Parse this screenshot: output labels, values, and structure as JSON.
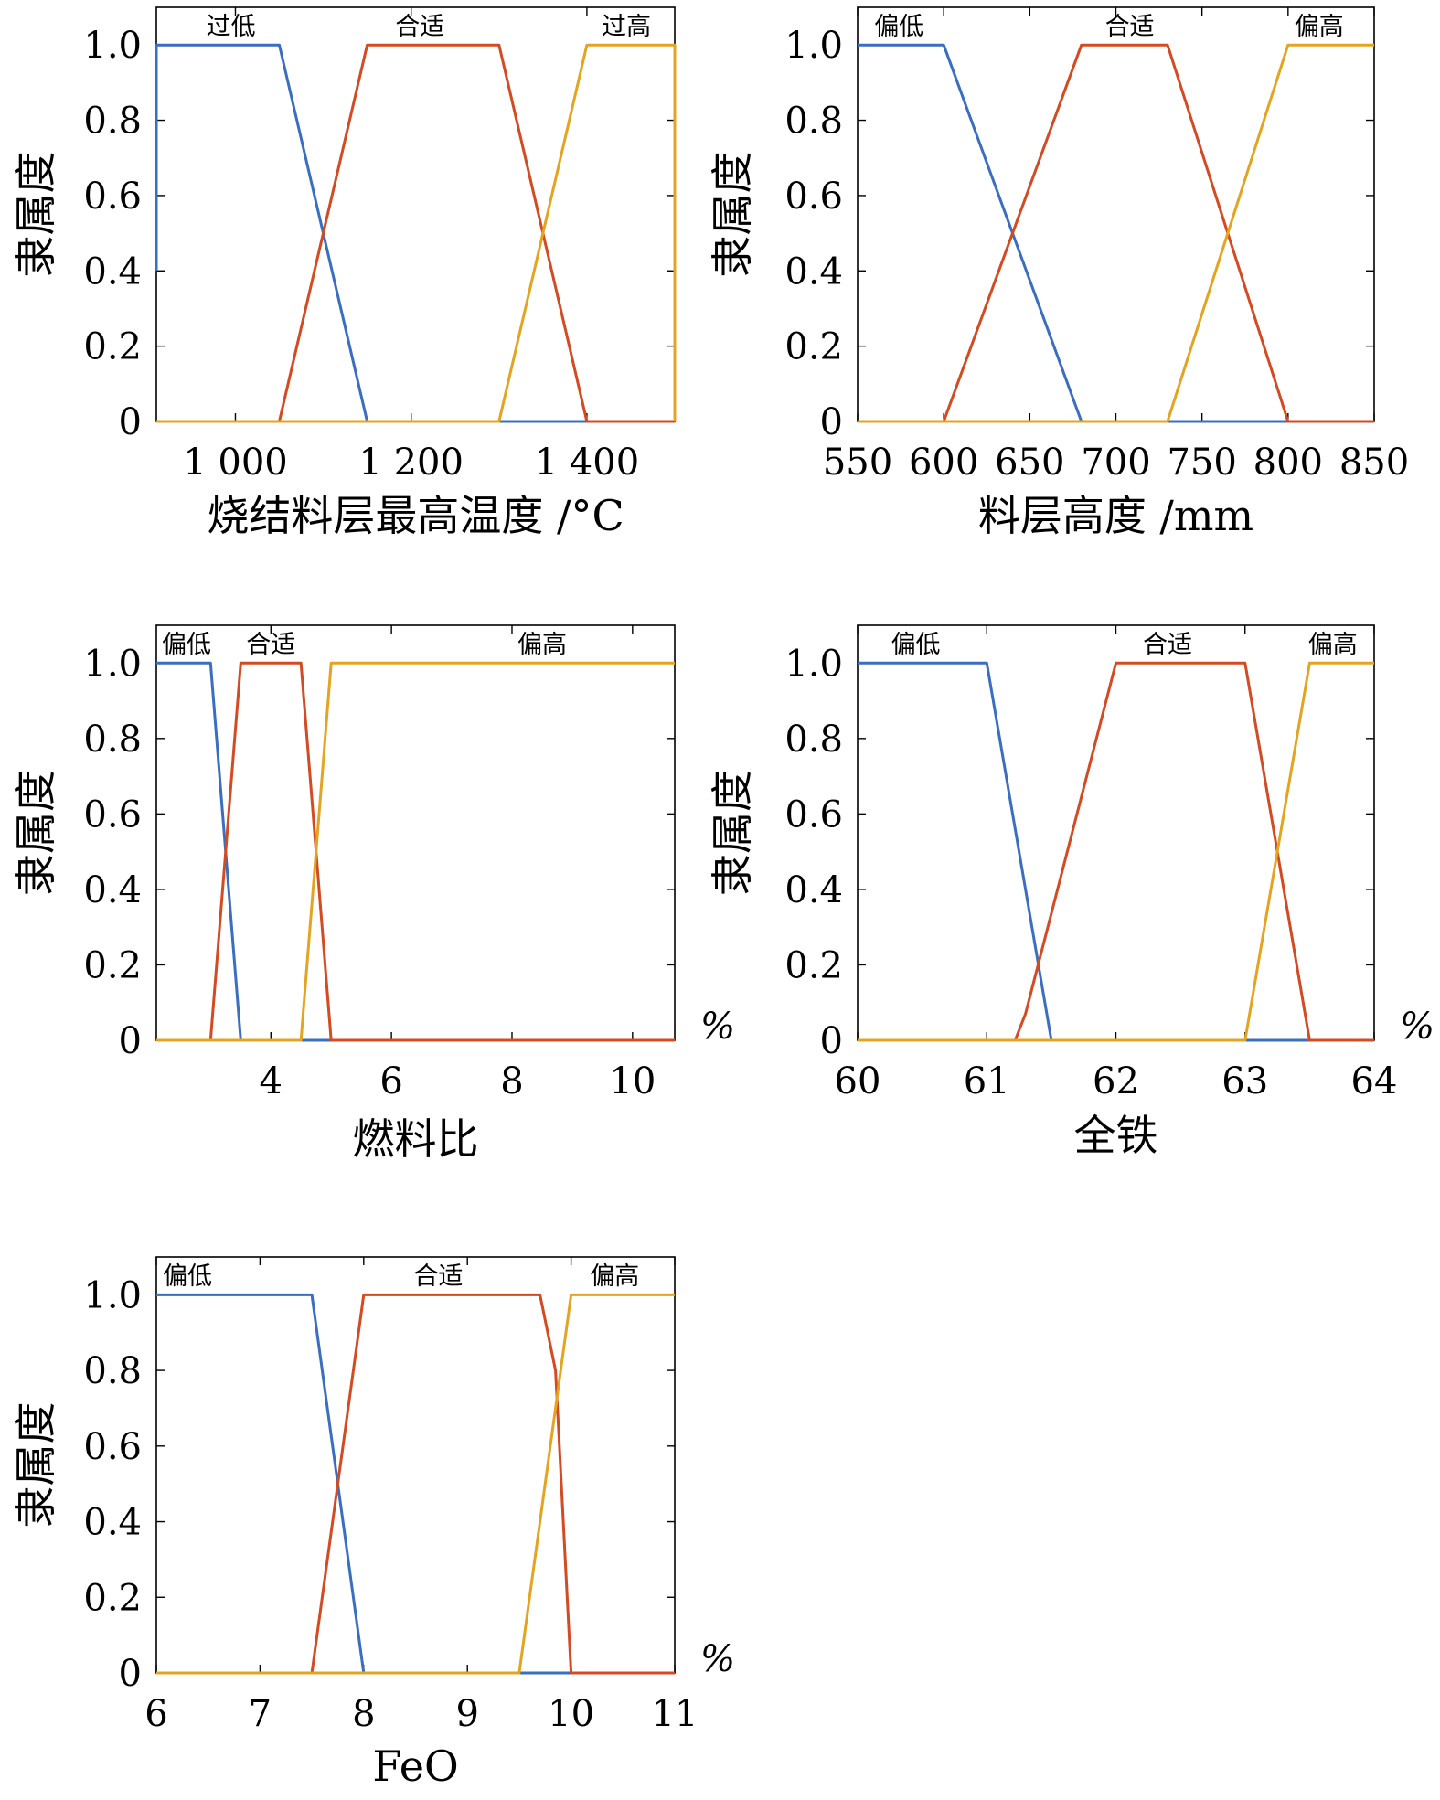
{
  "chart_data": [
    {
      "type": "line",
      "xlabel": "烧结料层最高温度 /°C",
      "ylabel": "隶属度",
      "unit": "",
      "xlim": [
        910,
        1500
      ],
      "ylim": [
        0,
        1.1
      ],
      "xticks": [
        1000,
        1200,
        1400
      ],
      "xtick_labels": [
        "1 000",
        "1 200",
        "1 400"
      ],
      "yticks": [
        0,
        0.2,
        0.4,
        0.6,
        0.8,
        1.0
      ],
      "ytick_labels": [
        "0",
        "0.2",
        "0.4",
        "0.6",
        "0.8",
        "1.0"
      ],
      "colors": [
        "#3a6fbf",
        "#d24b22",
        "#e3a521"
      ],
      "series": [
        {
          "name": "过低",
          "x": [
            910,
            910,
            1050,
            1150,
            1500
          ],
          "y": [
            0.4,
            1,
            1,
            0,
            0
          ]
        },
        {
          "name": "合适",
          "x": [
            910,
            1050,
            1150,
            1300,
            1400,
            1500
          ],
          "y": [
            0,
            0,
            1,
            1,
            0,
            0
          ]
        },
        {
          "name": "过高",
          "x": [
            910,
            1300,
            1400,
            1500,
            1500
          ],
          "y": [
            0,
            0,
            1,
            1,
            0
          ]
        }
      ],
      "set_labels": [
        {
          "text": "过低",
          "x": 995
        },
        {
          "text": "合适",
          "x": 1210
        },
        {
          "text": "过高",
          "x": 1445
        }
      ]
    },
    {
      "type": "line",
      "xlabel": "料层高度 /mm",
      "ylabel": "隶属度",
      "unit": "",
      "xlim": [
        550,
        850
      ],
      "ylim": [
        0,
        1.1
      ],
      "xticks": [
        550,
        600,
        650,
        700,
        750,
        800,
        850
      ],
      "xtick_labels": [
        "550",
        "600",
        "650",
        "700",
        "750",
        "800",
        "850"
      ],
      "yticks": [
        0,
        0.2,
        0.4,
        0.6,
        0.8,
        1.0
      ],
      "ytick_labels": [
        "0",
        "0.2",
        "0.4",
        "0.6",
        "0.8",
        "1.0"
      ],
      "colors": [
        "#3a6fbf",
        "#d24b22",
        "#e3a521"
      ],
      "series": [
        {
          "name": "偏低",
          "x": [
            550,
            600,
            680,
            850
          ],
          "y": [
            1,
            1,
            0,
            0
          ]
        },
        {
          "name": "合适",
          "x": [
            550,
            600,
            680,
            730,
            800,
            850
          ],
          "y": [
            0,
            0,
            1,
            1,
            0,
            0
          ]
        },
        {
          "name": "偏高",
          "x": [
            550,
            730,
            800,
            850
          ],
          "y": [
            0,
            0,
            1,
            1
          ]
        }
      ],
      "set_labels": [
        {
          "text": "偏低",
          "x": 574
        },
        {
          "text": "合适",
          "x": 708
        },
        {
          "text": "偏高",
          "x": 818
        }
      ]
    },
    {
      "type": "line",
      "xlabel": "燃料比",
      "ylabel": "隶属度",
      "unit": "%",
      "xlim": [
        2.1,
        10.7
      ],
      "ylim": [
        0,
        1.1
      ],
      "xticks": [
        4,
        6,
        8,
        10
      ],
      "xtick_labels": [
        "4",
        "6",
        "8",
        "10"
      ],
      "yticks": [
        0,
        0.2,
        0.4,
        0.6,
        0.8,
        1.0
      ],
      "ytick_labels": [
        "0",
        "0.2",
        "0.4",
        "0.6",
        "0.8",
        "1.0"
      ],
      "colors": [
        "#3a6fbf",
        "#d24b22",
        "#e3a521"
      ],
      "series": [
        {
          "name": "偏低",
          "x": [
            2.1,
            3.0,
            3.5,
            10.7
          ],
          "y": [
            1,
            1,
            0,
            0
          ]
        },
        {
          "name": "合适",
          "x": [
            2.1,
            3.0,
            3.5,
            4.5,
            5.0,
            10.7
          ],
          "y": [
            0,
            0,
            1,
            1,
            0,
            0
          ]
        },
        {
          "name": "偏高",
          "x": [
            2.1,
            4.5,
            5.0,
            10.7
          ],
          "y": [
            0,
            0,
            1,
            1
          ]
        }
      ],
      "set_labels": [
        {
          "text": "偏低",
          "x": 2.6
        },
        {
          "text": "合适",
          "x": 4.0
        },
        {
          "text": "偏高",
          "x": 8.5
        }
      ]
    },
    {
      "type": "line",
      "xlabel": "全铁",
      "ylabel": "隶属度",
      "unit": "%",
      "xlim": [
        60,
        64
      ],
      "ylim": [
        0,
        1.1
      ],
      "xticks": [
        60,
        61,
        62,
        63,
        64
      ],
      "xtick_labels": [
        "60",
        "61",
        "62",
        "63",
        "64"
      ],
      "yticks": [
        0,
        0.2,
        0.4,
        0.6,
        0.8,
        1.0
      ],
      "ytick_labels": [
        "0",
        "0.2",
        "0.4",
        "0.6",
        "0.8",
        "1.0"
      ],
      "colors": [
        "#3a6fbf",
        "#d24b22",
        "#e3a521"
      ],
      "series": [
        {
          "name": "偏低",
          "x": [
            60,
            61,
            61.5,
            64
          ],
          "y": [
            1,
            1,
            0,
            0
          ]
        },
        {
          "name": "合适",
          "x": [
            60,
            61.22,
            61.3,
            62,
            63,
            63.5,
            64
          ],
          "y": [
            0,
            0,
            0.07,
            1,
            1,
            0,
            0
          ]
        },
        {
          "name": "偏高",
          "x": [
            60,
            63,
            63.5,
            64
          ],
          "y": [
            0,
            0,
            1,
            1
          ]
        }
      ],
      "set_labels": [
        {
          "text": "偏低",
          "x": 60.45
        },
        {
          "text": "合适",
          "x": 62.4
        },
        {
          "text": "偏高",
          "x": 63.68
        }
      ]
    },
    {
      "type": "line",
      "xlabel": "FeO",
      "ylabel": "隶属度",
      "unit": "%",
      "xlim": [
        6,
        11
      ],
      "ylim": [
        0,
        1.1
      ],
      "xticks": [
        6,
        7,
        8,
        9,
        10,
        11
      ],
      "xtick_labels": [
        "6",
        "7",
        "8",
        "9",
        "10",
        "11"
      ],
      "yticks": [
        0,
        0.2,
        0.4,
        0.6,
        0.8,
        1.0
      ],
      "ytick_labels": [
        "0",
        "0.2",
        "0.4",
        "0.6",
        "0.8",
        "1.0"
      ],
      "colors": [
        "#3a6fbf",
        "#d24b22",
        "#e3a521"
      ],
      "series": [
        {
          "name": "偏低",
          "x": [
            6,
            7.5,
            8,
            11
          ],
          "y": [
            1,
            1,
            0,
            0
          ]
        },
        {
          "name": "合适",
          "x": [
            6,
            7.5,
            8,
            9.7,
            9.85,
            10,
            11
          ],
          "y": [
            0,
            0,
            1,
            1,
            0.8,
            0,
            0
          ]
        },
        {
          "name": "偏高",
          "x": [
            6,
            9.5,
            10,
            11
          ],
          "y": [
            0,
            0,
            1,
            1
          ]
        }
      ],
      "set_labels": [
        {
          "text": "偏低",
          "x": 6.3
        },
        {
          "text": "合适",
          "x": 8.72
        },
        {
          "text": "偏高",
          "x": 10.42
        }
      ]
    }
  ]
}
